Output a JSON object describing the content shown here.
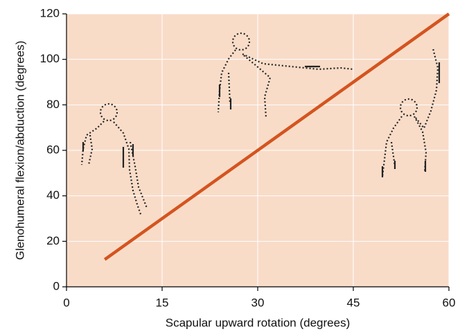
{
  "chart_data": {
    "type": "line",
    "x_label": "Scapular upward rotation (degrees)",
    "y_label": "Glenohumeral flexion/abduction (degrees)",
    "x": [
      6,
      60
    ],
    "values": [
      12,
      120
    ],
    "color": "#d4541f",
    "xlim": [
      0,
      60
    ],
    "xticks": [
      0,
      15,
      30,
      45,
      60
    ],
    "ylim": [
      0,
      120
    ],
    "yticks": [
      0,
      20,
      40,
      60,
      80,
      100,
      120
    ],
    "grid": true
  }
}
